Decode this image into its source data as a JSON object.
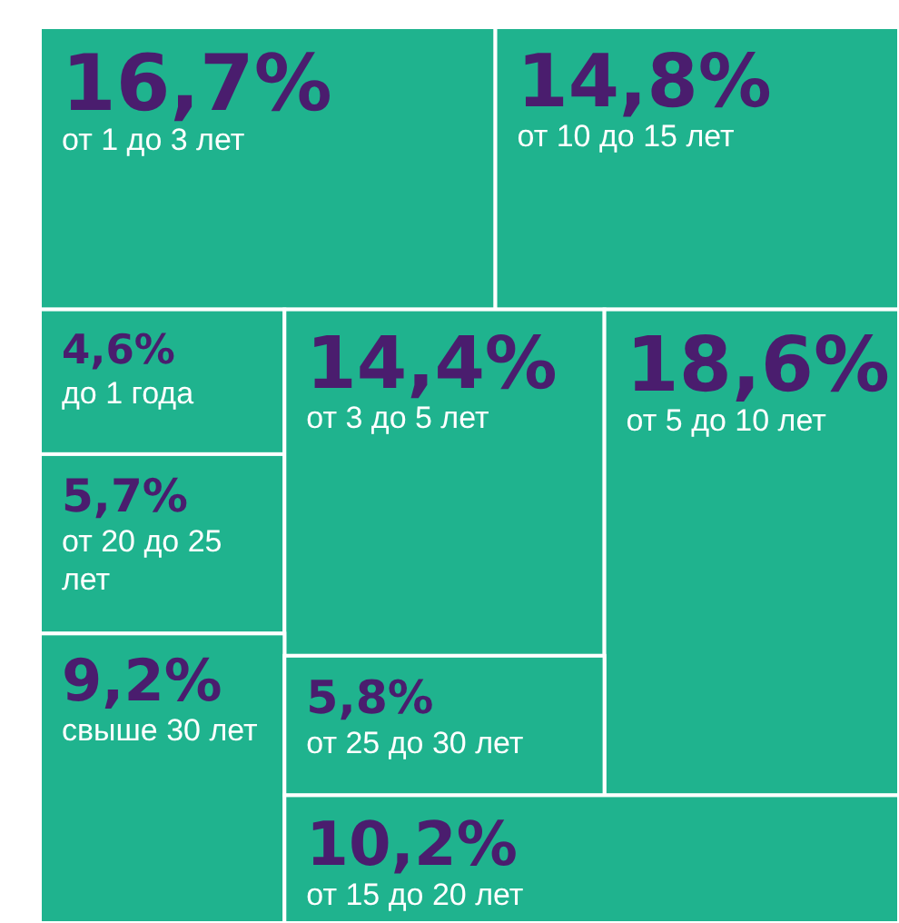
{
  "chart_data": {
    "type": "other",
    "categories": [
      "от 1 до 3 лет",
      "от 10 до 15 лет",
      "до 1 года",
      "от 20 до 25 лет",
      "от 3 до 5 лет",
      "от 5 до 10 лет",
      "свыше 30 лет",
      "от 25 до 30 лет",
      "от 15 до 20 лет"
    ],
    "values": [
      16.7,
      14.8,
      4.6,
      5.7,
      14.4,
      18.6,
      9.2,
      5.8,
      10.2
    ],
    "value_labels": [
      "16,7%",
      "14,8%",
      "4,6%",
      "5,7%",
      "14,4%",
      "18,6%",
      "9,2%",
      "5,8%",
      "10,2%"
    ],
    "color": "#1fb38e"
  }
}
